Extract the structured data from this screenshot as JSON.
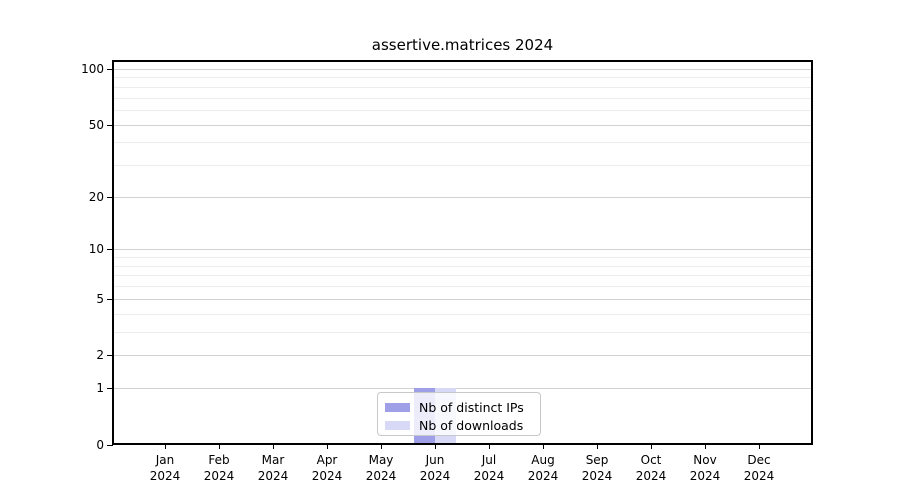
{
  "chart_data": {
    "type": "bar",
    "title": "assertive.matrices 2024",
    "categories": [
      "Jan",
      "Feb",
      "Mar",
      "Apr",
      "May",
      "Jun",
      "Jul",
      "Aug",
      "Sep",
      "Oct",
      "Nov",
      "Dec"
    ],
    "x_sublabel": "2024",
    "series": [
      {
        "name": "Nb of distinct IPs",
        "color": "#9f9fe8",
        "values": [
          0,
          0,
          0,
          0,
          0,
          1,
          0,
          0,
          0,
          0,
          0,
          0
        ]
      },
      {
        "name": "Nb of downloads",
        "color": "#d8d8f7",
        "values": [
          0,
          0,
          0,
          0,
          0,
          1,
          0,
          0,
          0,
          0,
          0,
          0
        ]
      }
    ],
    "yscale": "log1p",
    "ylim": [
      0,
      111
    ],
    "yticks": [
      0,
      1,
      2,
      5,
      10,
      20,
      50,
      100
    ],
    "yticks_minor": [
      3,
      4,
      6,
      7,
      8,
      9,
      30,
      40,
      60,
      70,
      80,
      90
    ],
    "grid": "horizontal-on",
    "legend_position": "bottom-center-inside",
    "colors": {
      "grid_major": "#d2d2d2",
      "grid_minor": "#ececec",
      "spine": "#000000",
      "text": "#000000",
      "background": "#ffffff"
    }
  }
}
